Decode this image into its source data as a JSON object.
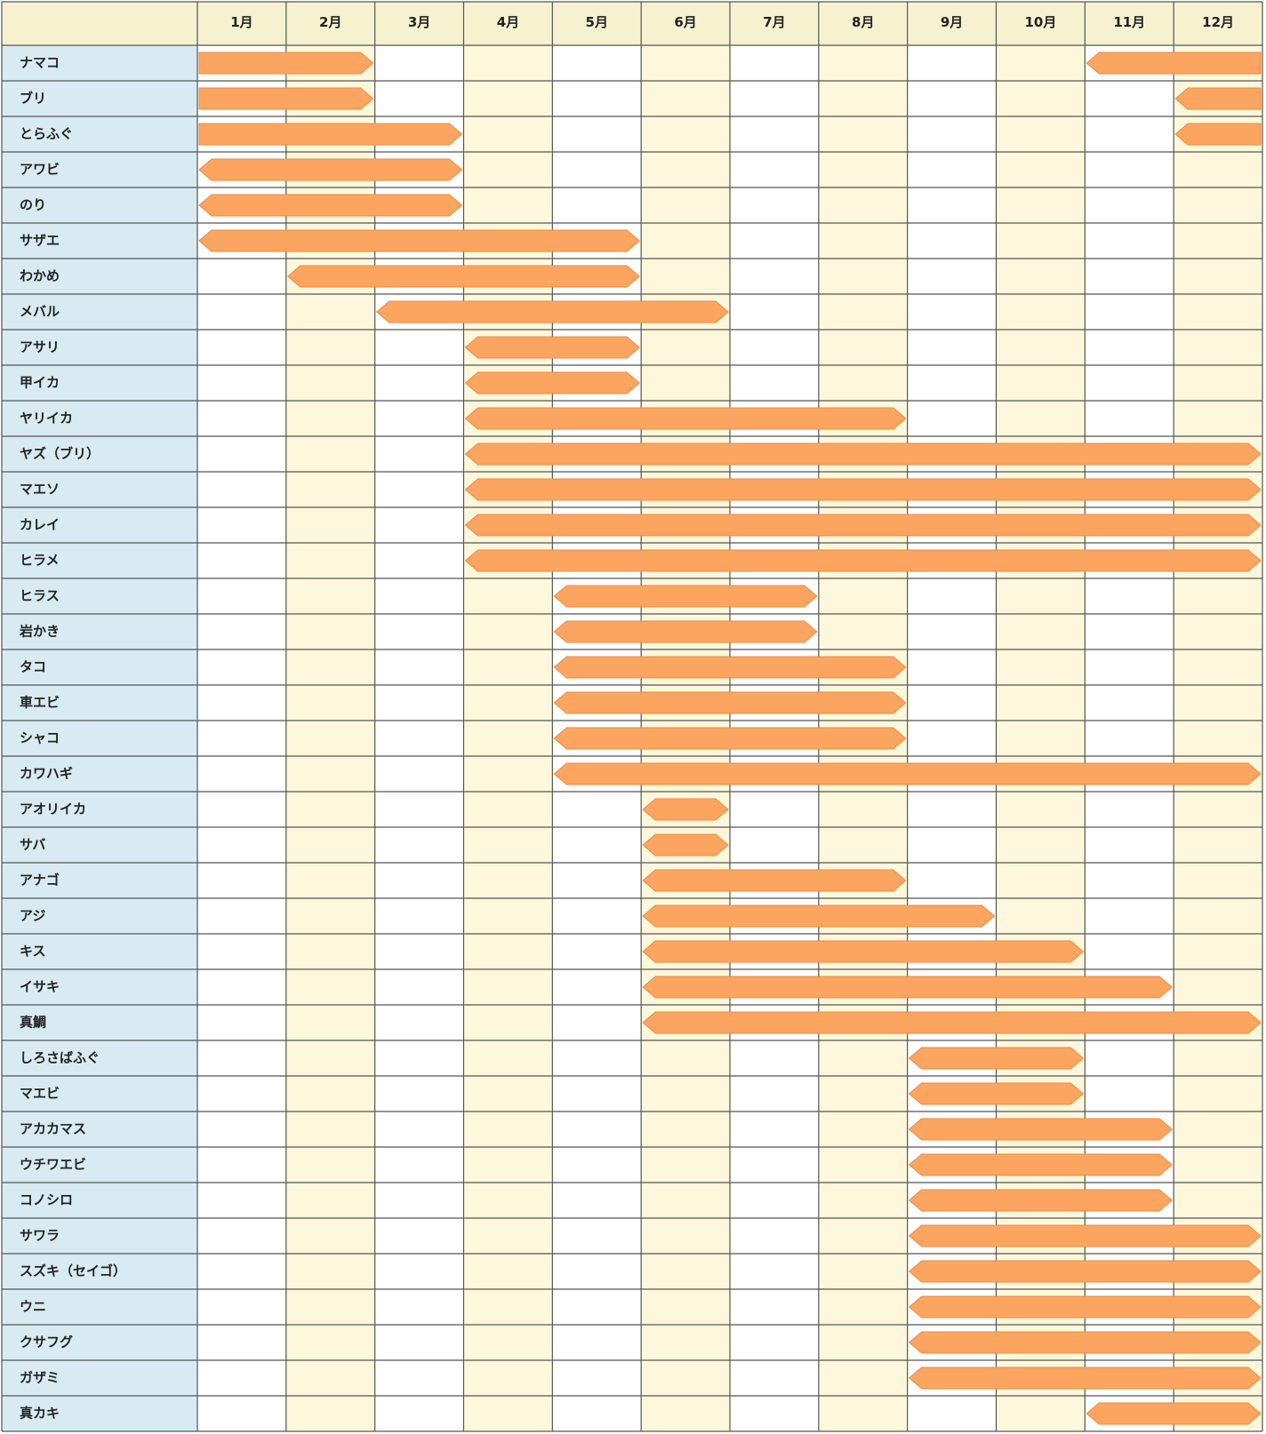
{
  "header": {
    "months": [
      "1月",
      "2月",
      "3月",
      "4月",
      "5月",
      "6月",
      "7月",
      "8月",
      "9月",
      "10月",
      "11月",
      "12月"
    ]
  },
  "rows": [
    {
      "name": "ナマコ",
      "segments": [
        [
          1,
          2
        ],
        [
          11,
          12
        ]
      ]
    },
    {
      "name": "ブリ",
      "segments": [
        [
          1,
          2
        ],
        [
          12,
          12
        ]
      ]
    },
    {
      "name": "とらふぐ",
      "segments": [
        [
          1,
          3
        ],
        [
          12,
          12
        ]
      ]
    },
    {
      "name": "アワビ",
      "segments": [
        [
          1,
          3
        ]
      ]
    },
    {
      "name": "のり",
      "segments": [
        [
          1,
          3
        ]
      ]
    },
    {
      "name": "サザエ",
      "segments": [
        [
          1,
          5
        ]
      ]
    },
    {
      "name": "わかめ",
      "segments": [
        [
          2,
          5
        ]
      ]
    },
    {
      "name": "メバル",
      "segments": [
        [
          3,
          6
        ]
      ]
    },
    {
      "name": "アサリ",
      "segments": [
        [
          4,
          5
        ]
      ]
    },
    {
      "name": "甲イカ",
      "segments": [
        [
          4,
          5
        ]
      ]
    },
    {
      "name": "ヤリイカ",
      "segments": [
        [
          4,
          8
        ]
      ]
    },
    {
      "name": "ヤズ（ブリ）",
      "segments": [
        [
          4,
          12
        ]
      ]
    },
    {
      "name": "マエソ",
      "segments": [
        [
          4,
          12
        ]
      ]
    },
    {
      "name": "カレイ",
      "segments": [
        [
          4,
          12
        ]
      ]
    },
    {
      "name": "ヒラメ",
      "segments": [
        [
          4,
          12
        ]
      ]
    },
    {
      "name": "ヒラス",
      "segments": [
        [
          5,
          7
        ]
      ]
    },
    {
      "name": "岩かき",
      "segments": [
        [
          5,
          7
        ]
      ]
    },
    {
      "name": "タコ",
      "segments": [
        [
          5,
          8
        ]
      ]
    },
    {
      "name": "車エビ",
      "segments": [
        [
          5,
          8
        ]
      ]
    },
    {
      "name": "シャコ",
      "segments": [
        [
          5,
          8
        ]
      ]
    },
    {
      "name": "カワハギ",
      "segments": [
        [
          5,
          12
        ]
      ]
    },
    {
      "name": "アオリイカ",
      "segments": [
        [
          6,
          6
        ]
      ]
    },
    {
      "name": "サバ",
      "segments": [
        [
          6,
          6
        ]
      ]
    },
    {
      "name": "アナゴ",
      "segments": [
        [
          6,
          8
        ]
      ]
    },
    {
      "name": "アジ",
      "segments": [
        [
          6,
          9
        ]
      ]
    },
    {
      "name": "キス",
      "segments": [
        [
          6,
          10
        ]
      ]
    },
    {
      "name": "イサキ",
      "segments": [
        [
          6,
          11
        ]
      ]
    },
    {
      "name": "真鯛",
      "segments": [
        [
          6,
          12
        ]
      ]
    },
    {
      "name": "しろさばふぐ",
      "segments": [
        [
          9,
          10
        ]
      ]
    },
    {
      "name": "マエビ",
      "segments": [
        [
          9,
          10
        ]
      ]
    },
    {
      "name": "アカカマス",
      "segments": [
        [
          9,
          11
        ]
      ]
    },
    {
      "name": "ウチワエビ",
      "segments": [
        [
          9,
          11
        ]
      ]
    },
    {
      "name": "コノシロ",
      "segments": [
        [
          9,
          11
        ]
      ]
    },
    {
      "name": "サワラ",
      "segments": [
        [
          9,
          12
        ]
      ]
    },
    {
      "name": "スズキ（セイゴ）",
      "segments": [
        [
          9,
          12
        ]
      ]
    },
    {
      "name": "ウニ",
      "segments": [
        [
          9,
          12
        ]
      ]
    },
    {
      "name": "クサフグ",
      "segments": [
        [
          9,
          12
        ]
      ]
    },
    {
      "name": "ガザミ",
      "segments": [
        [
          9,
          12
        ]
      ]
    },
    {
      "name": "真カキ",
      "segments": [
        [
          11,
          12
        ]
      ]
    }
  ]
}
